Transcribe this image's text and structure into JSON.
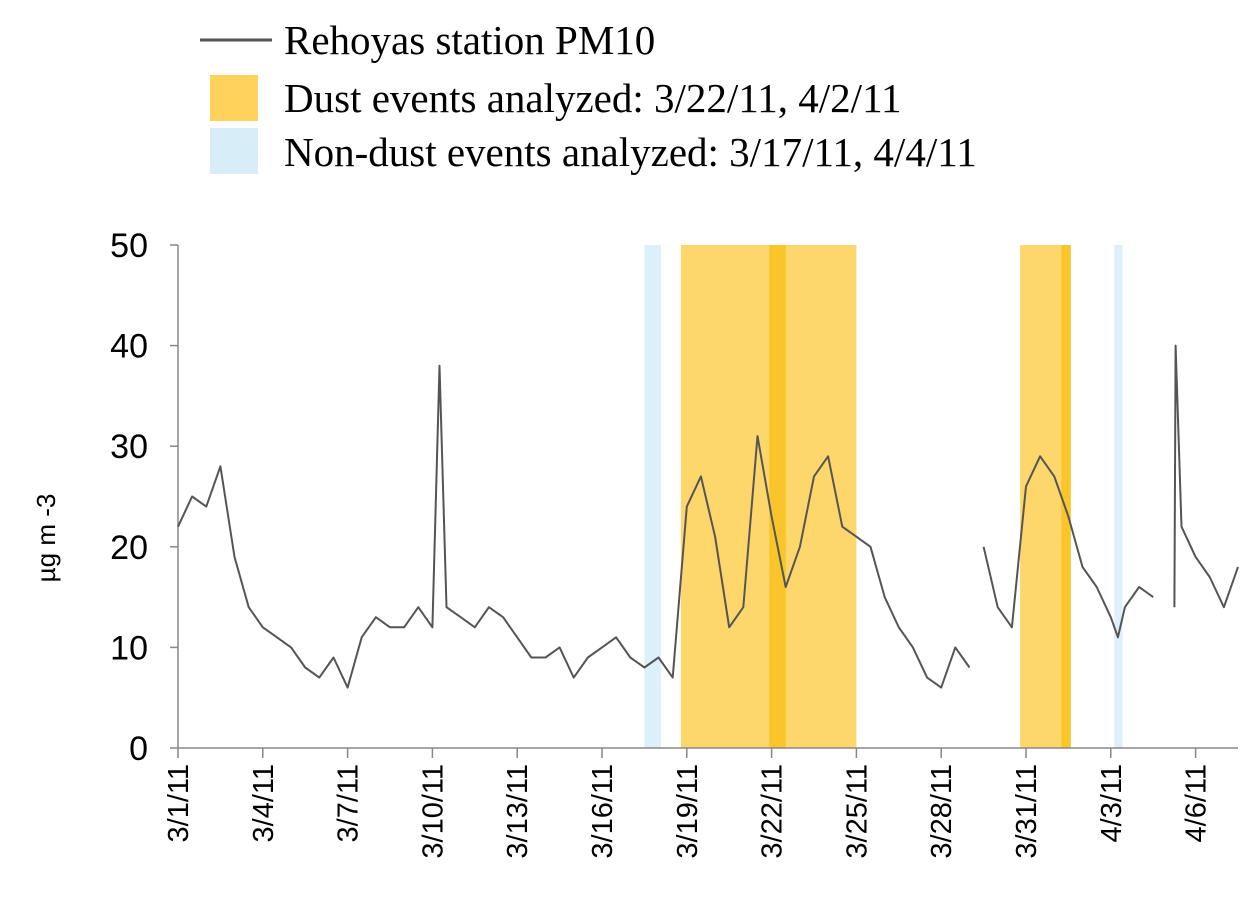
{
  "chart_data": {
    "type": "line",
    "ylabel": "µg m -3",
    "ylim": [
      0,
      50
    ],
    "yticks": [
      "0",
      "10",
      "20",
      "30",
      "40",
      "50"
    ],
    "xlim": [
      "2011-03-01",
      "2011-04-07T12:00"
    ],
    "xticks": [
      {
        "date": "2011-03-01",
        "label": "3/1/11"
      },
      {
        "date": "2011-03-04",
        "label": "3/4/11"
      },
      {
        "date": "2011-03-07",
        "label": "3/7/11"
      },
      {
        "date": "2011-03-10",
        "label": "3/10/11"
      },
      {
        "date": "2011-03-13",
        "label": "3/13/11"
      },
      {
        "date": "2011-03-16",
        "label": "3/16/11"
      },
      {
        "date": "2011-03-19",
        "label": "3/19/11"
      },
      {
        "date": "2011-03-22",
        "label": "3/22/11"
      },
      {
        "date": "2011-03-25",
        "label": "3/25/11"
      },
      {
        "date": "2011-03-28",
        "label": "3/28/11"
      },
      {
        "date": "2011-03-31",
        "label": "3/31/11"
      },
      {
        "date": "2011-04-03",
        "label": "4/3/11"
      },
      {
        "date": "2011-04-06",
        "label": "4/6/11"
      }
    ],
    "legend": [
      {
        "label": "Rehoyas station PM10",
        "kind": "line",
        "color": "#555555"
      },
      {
        "label": "Dust events analyzed: 3/22/11, 4/2/11",
        "kind": "patch",
        "color": "#fdd35c"
      },
      {
        "label": "Non-dust events analyzed: 3/17/11, 4/4/11",
        "kind": "patch",
        "color": "#d7eef8"
      }
    ],
    "shaded_periods": [
      {
        "kind": "non-dust",
        "start": "2011-03-17T12:00",
        "end": "2011-03-18T02:00",
        "color": "#d7eef8"
      },
      {
        "kind": "dust",
        "start": "2011-03-18T19:00",
        "end": "2011-03-25",
        "color": "#fdd35c"
      },
      {
        "kind": "dust-core",
        "start": "2011-03-21T22:00",
        "end": "2011-03-22T12:00",
        "color": "#f9c21f"
      },
      {
        "kind": "dust",
        "start": "2011-03-30T19:00",
        "end": "2011-04-01T14:00",
        "color": "#fdd35c"
      },
      {
        "kind": "dust-core",
        "start": "2011-04-01T06:00",
        "end": "2011-04-01T14:00",
        "color": "#f9c21f"
      },
      {
        "kind": "non-dust",
        "start": "2011-04-03T03:00",
        "end": "2011-04-03T10:00",
        "color": "#d7eef8"
      }
    ],
    "series": [
      {
        "name": "Rehoyas station PM10",
        "color": "#555555",
        "segments": [
          {
            "x": [
              "2011-03-01",
              "2011-03-01T12:00",
              "2011-03-02",
              "2011-03-02T12:00",
              "2011-03-03",
              "2011-03-03T12:00",
              "2011-03-04",
              "2011-03-04T12:00",
              "2011-03-05",
              "2011-03-05T12:00",
              "2011-03-06",
              "2011-03-06T12:00",
              "2011-03-07",
              "2011-03-07T12:00",
              "2011-03-08",
              "2011-03-08T12:00",
              "2011-03-09",
              "2011-03-09T12:00",
              "2011-03-10",
              "2011-03-10T06:00",
              "2011-03-10T12:00",
              "2011-03-11",
              "2011-03-11T12:00",
              "2011-03-12",
              "2011-03-12T12:00",
              "2011-03-13",
              "2011-03-13T12:00",
              "2011-03-14",
              "2011-03-14T12:00",
              "2011-03-15",
              "2011-03-15T12:00",
              "2011-03-16",
              "2011-03-16T12:00",
              "2011-03-17",
              "2011-03-17T12:00",
              "2011-03-18",
              "2011-03-18T12:00",
              "2011-03-19",
              "2011-03-19T12:00",
              "2011-03-20",
              "2011-03-20T12:00",
              "2011-03-21",
              "2011-03-21T12:00",
              "2011-03-22",
              "2011-03-22T12:00",
              "2011-03-23",
              "2011-03-23T12:00",
              "2011-03-24",
              "2011-03-24T12:00",
              "2011-03-25",
              "2011-03-25T12:00",
              "2011-03-26",
              "2011-03-26T12:00",
              "2011-03-27",
              "2011-03-27T12:00",
              "2011-03-28",
              "2011-03-28T12:00",
              "2011-03-29"
            ],
            "y": [
              22,
              25,
              24,
              28,
              19,
              14,
              12,
              11,
              10,
              8,
              7,
              9,
              6,
              11,
              13,
              12,
              12,
              14,
              12,
              38,
              14,
              13,
              12,
              14,
              13,
              11,
              9,
              9,
              10,
              7,
              9,
              10,
              11,
              9,
              8,
              9,
              7,
              24,
              27,
              21,
              12,
              14,
              31,
              23,
              16,
              20,
              27,
              29,
              22,
              21,
              20,
              15,
              12,
              10,
              7,
              6,
              10,
              8
            ]
          },
          {
            "x": [
              "2011-03-29T12:00",
              "2011-03-30",
              "2011-03-30T12:00",
              "2011-03-31",
              "2011-03-31T12:00",
              "2011-04-01",
              "2011-04-01T12:00",
              "2011-04-02",
              "2011-04-02T12:00",
              "2011-04-03",
              "2011-04-03T06:00",
              "2011-04-03T12:00",
              "2011-04-04",
              "2011-04-04T12:00"
            ],
            "y": [
              20,
              14,
              12,
              26,
              29,
              27,
              23,
              18,
              16,
              13,
              11,
              14,
              16,
              15
            ]
          },
          {
            "x": [
              "2011-04-05T06:00",
              "2011-04-05T07:00",
              "2011-04-05T12:00",
              "2011-04-06",
              "2011-04-06T12:00",
              "2011-04-07",
              "2011-04-07T12:00"
            ],
            "y": [
              14,
              40,
              22,
              19,
              17,
              14,
              18
            ]
          }
        ]
      }
    ]
  }
}
